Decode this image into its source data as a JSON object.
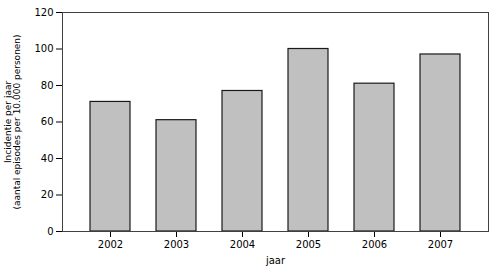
{
  "chart_data": {
    "type": "bar",
    "categories": [
      "2002",
      "2003",
      "2004",
      "2005",
      "2006",
      "2007"
    ],
    "values": [
      71,
      61,
      77,
      100,
      81,
      97
    ],
    "color": "#c0c0c0",
    "xlabel": "jaar",
    "ylabel": "Incidentie per jaar\n(aantal episodes per 10.000 personen)",
    "ylim": [
      0,
      120
    ],
    "yticks": [
      0,
      20,
      40,
      60,
      80,
      100,
      120
    ],
    "grid": false
  }
}
